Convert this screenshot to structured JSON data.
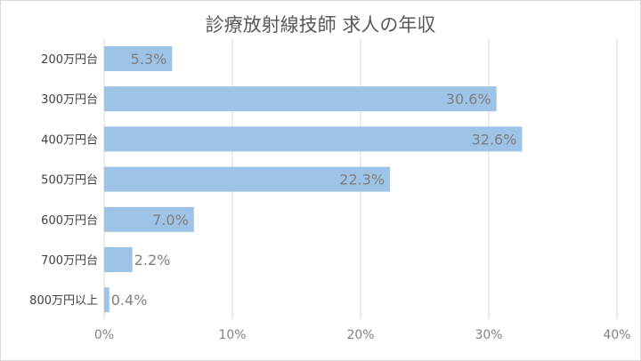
{
  "chart_data": {
    "type": "bar",
    "orientation": "horizontal",
    "title": "診療放射線技師 求人の年収",
    "xlabel": "",
    "ylabel": "",
    "categories": [
      "200万円台",
      "300万円台",
      "400万円台",
      "500万円台",
      "600万円台",
      "700万円台",
      "800万円以上"
    ],
    "values": [
      5.3,
      30.6,
      32.6,
      22.3,
      7.0,
      2.2,
      0.4
    ],
    "data_labels": [
      "5.3%",
      "30.6%",
      "32.6%",
      "22.3%",
      "7.0%",
      "2.2%",
      "0.4%"
    ],
    "xlim": [
      0,
      40
    ],
    "ticks": [
      0,
      10,
      20,
      30,
      40
    ],
    "tick_labels": [
      "0%",
      "10%",
      "20%",
      "30%",
      "40%"
    ],
    "grid": true,
    "legend": "none",
    "bar_color": "#9dc3e6",
    "grid_color": "#d9d9d9",
    "text_color": "#595959"
  }
}
